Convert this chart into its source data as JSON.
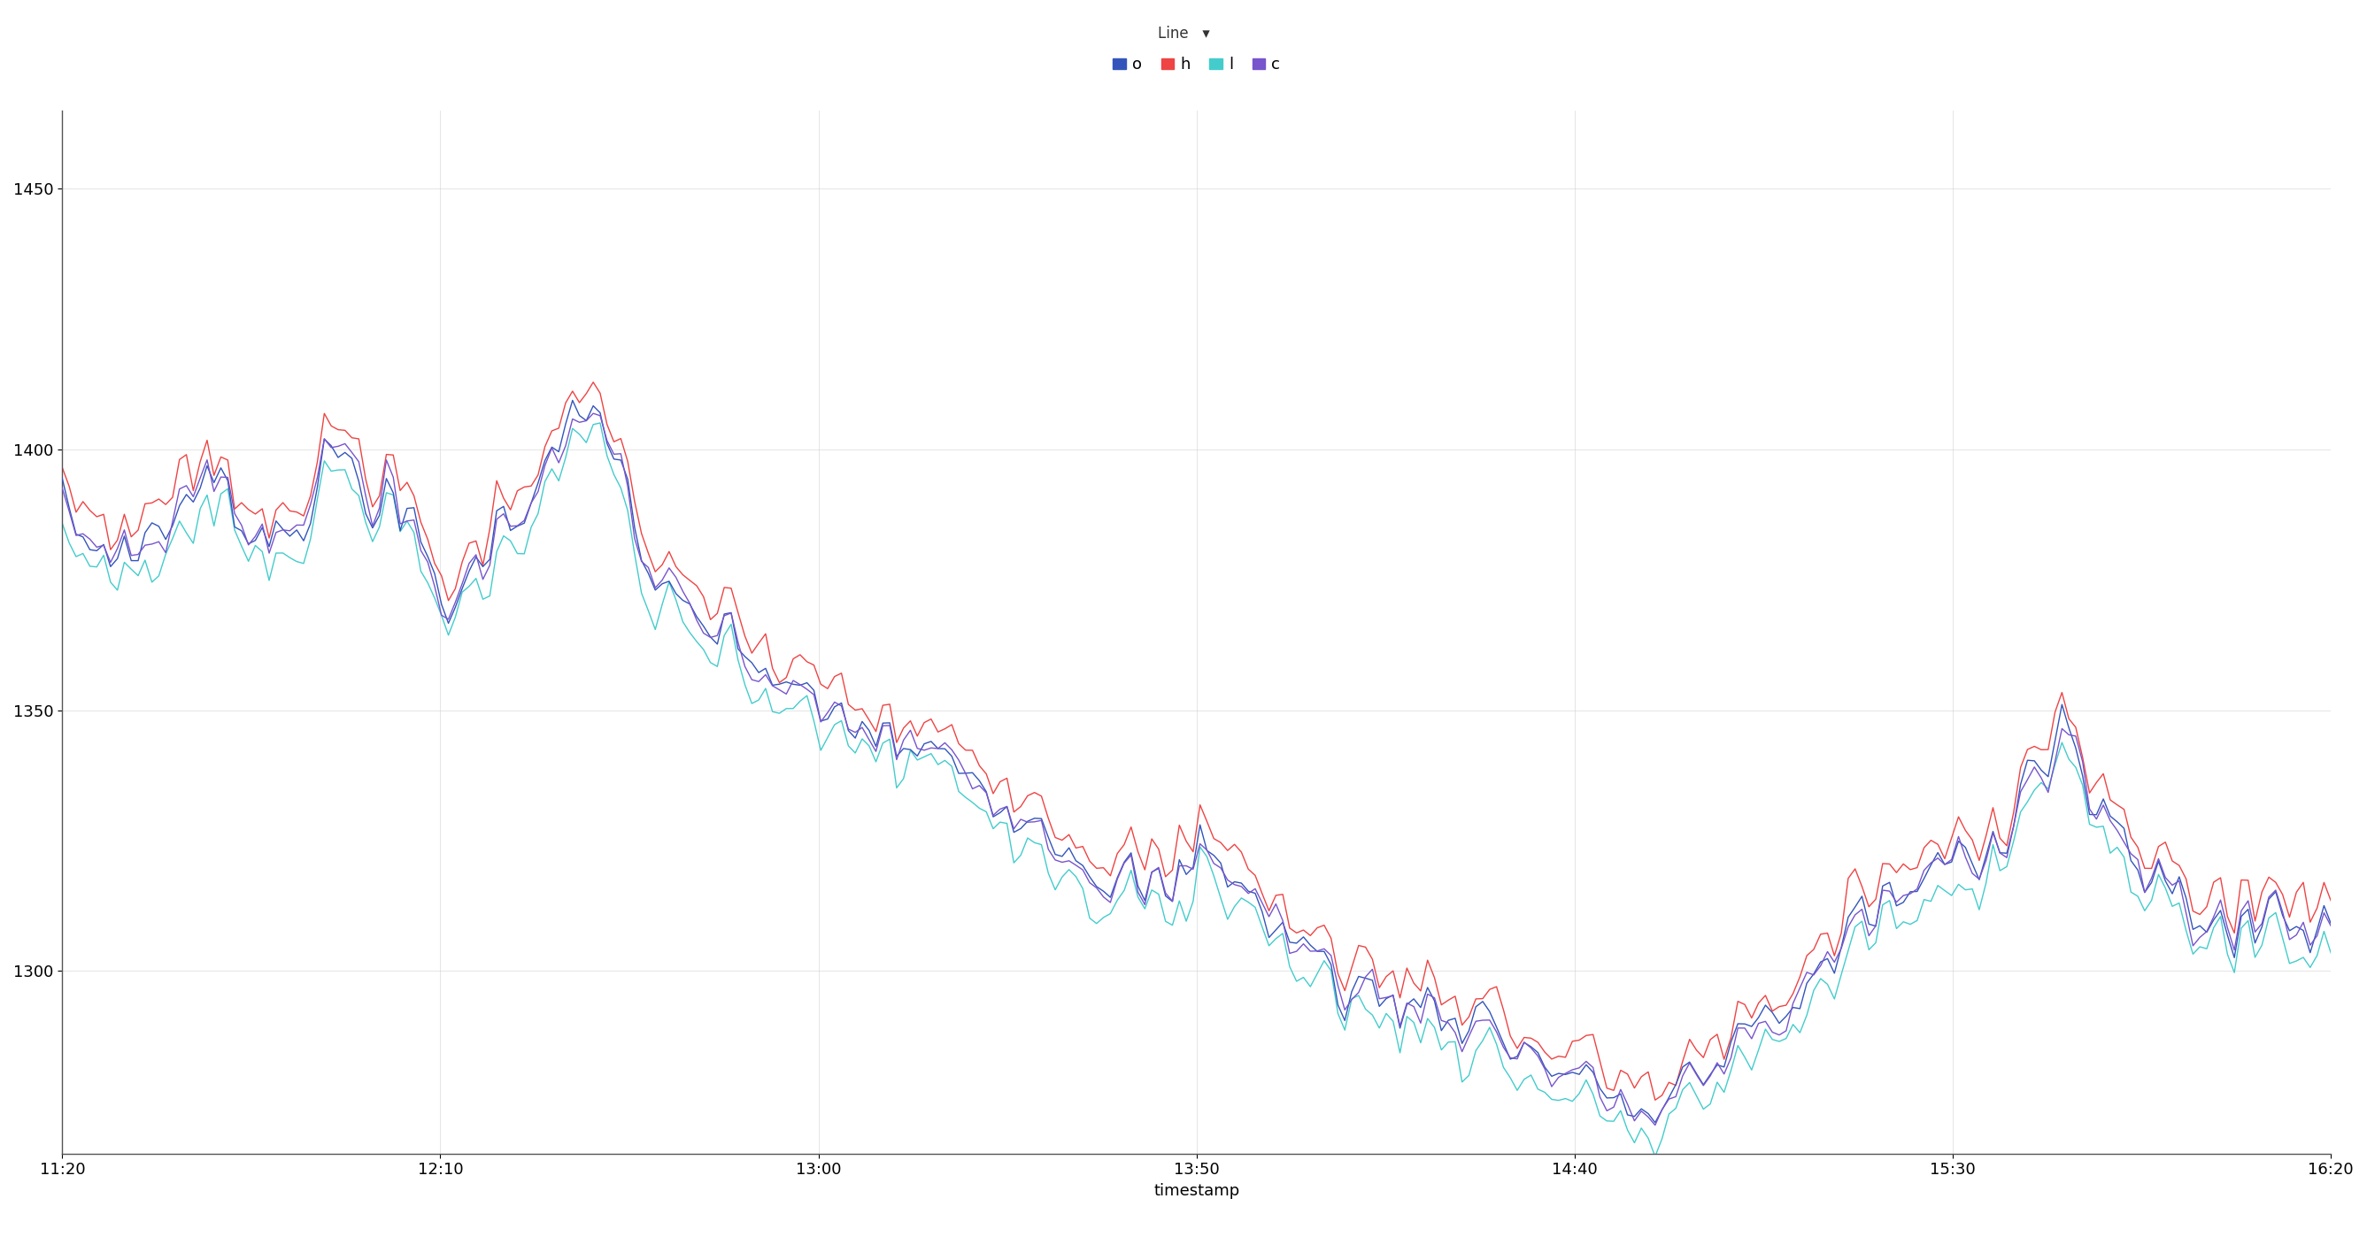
{
  "title": "Line",
  "xlabel": "timestamp",
  "ylabel": "",
  "ylim": [
    1265,
    1465
  ],
  "yticks": [
    1300,
    1350,
    1400,
    1450
  ],
  "legend_labels": [
    "o",
    "h",
    "l",
    "c"
  ],
  "line_colors_o": "#3355bb",
  "line_colors_h": "#ee4444",
  "line_colors_l": "#44cccc",
  "line_colors_c": "#7755cc",
  "line_width": 1.0,
  "background_color": "#ffffff",
  "grid_color": "#cccccc",
  "x_tick_labels": [
    "11:20",
    "12:10",
    "13:00",
    "13:50",
    "14:40",
    "15:30",
    "16:20"
  ],
  "n_points": 330
}
